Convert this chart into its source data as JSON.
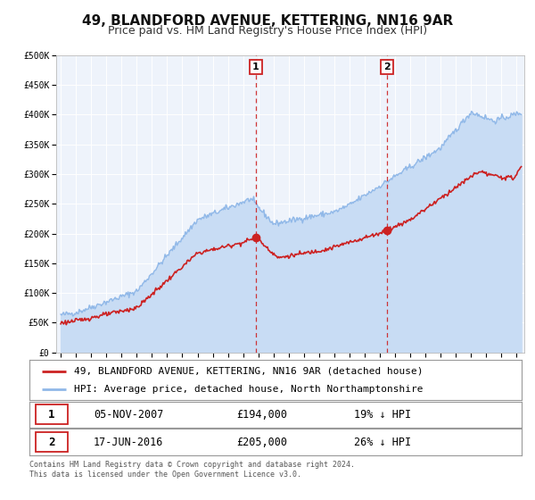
{
  "title": "49, BLANDFORD AVENUE, KETTERING, NN16 9AR",
  "subtitle": "Price paid vs. HM Land Registry's House Price Index (HPI)",
  "background_color": "#ffffff",
  "plot_bg_color": "#eef3fb",
  "grid_color": "#ffffff",
  "ylim": [
    0,
    500000
  ],
  "yticks": [
    0,
    50000,
    100000,
    150000,
    200000,
    250000,
    300000,
    350000,
    400000,
    450000,
    500000
  ],
  "ytick_labels": [
    "£0",
    "£50K",
    "£100K",
    "£150K",
    "£200K",
    "£250K",
    "£300K",
    "£350K",
    "£400K",
    "£450K",
    "£500K"
  ],
  "xlim_start": 1994.7,
  "xlim_end": 2025.5,
  "xticks": [
    1995,
    1996,
    1997,
    1998,
    1999,
    2000,
    2001,
    2002,
    2003,
    2004,
    2005,
    2006,
    2007,
    2008,
    2009,
    2010,
    2011,
    2012,
    2013,
    2014,
    2015,
    2016,
    2017,
    2018,
    2019,
    2020,
    2021,
    2022,
    2023,
    2024,
    2025
  ],
  "hpi_color": "#90b8e8",
  "hpi_fill_color": "#c8dcf4",
  "price_color": "#cc2222",
  "marker1_x": 2007.84,
  "marker1_y": 194000,
  "marker2_x": 2016.46,
  "marker2_y": 205000,
  "vline_color": "#cc2222",
  "legend_label_price": "49, BLANDFORD AVENUE, KETTERING, NN16 9AR (detached house)",
  "legend_label_hpi": "HPI: Average price, detached house, North Northamptonshire",
  "marker1_date": "05-NOV-2007",
  "marker1_price": "£194,000",
  "marker1_hpi": "19% ↓ HPI",
  "marker2_date": "17-JUN-2016",
  "marker2_price": "£205,000",
  "marker2_hpi": "26% ↓ HPI",
  "footnote": "Contains HM Land Registry data © Crown copyright and database right 2024.\nThis data is licensed under the Open Government Licence v3.0.",
  "title_fontsize": 11,
  "subtitle_fontsize": 9,
  "tick_fontsize": 7,
  "legend_fontsize": 8
}
